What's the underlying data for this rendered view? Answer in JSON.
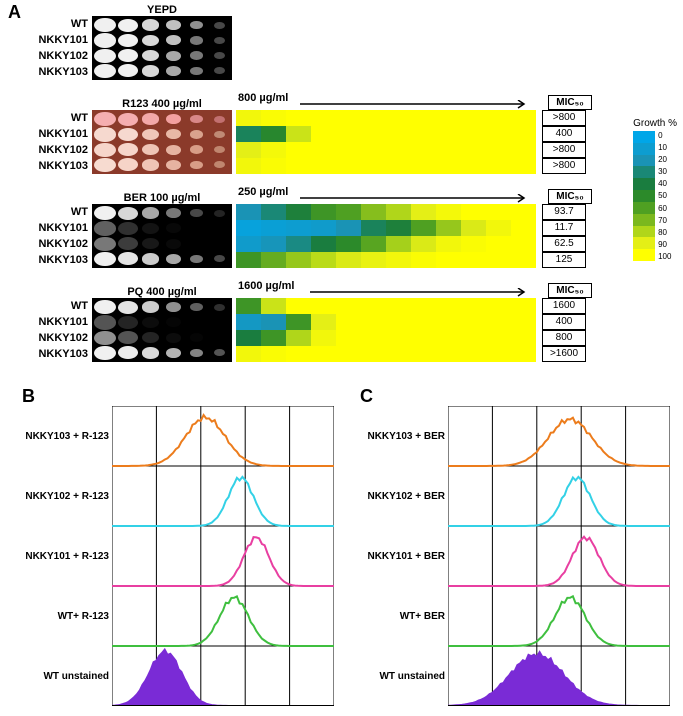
{
  "panel_labels": {
    "A": "A",
    "B": "B",
    "C": "C"
  },
  "strain_labels": [
    "WT",
    "NKKY101",
    "NKKY102",
    "NKKY103"
  ],
  "spot_assays": {
    "yepd": {
      "title": "YEPD",
      "bg": "#000000",
      "spot_opacities": [
        [
          1,
          1,
          0.9,
          0.8,
          0.6,
          0.3
        ],
        [
          1,
          1,
          0.9,
          0.8,
          0.5,
          0.3
        ],
        [
          1,
          1,
          0.9,
          0.7,
          0.5,
          0.3
        ],
        [
          1,
          1,
          0.9,
          0.7,
          0.5,
          0.3
        ]
      ]
    },
    "r123": {
      "title": "R123 400 µg/ml",
      "bg": "#8b3a2a",
      "spot_tints": [
        [
          "#f5aeb0",
          "#f5aeb0",
          "#f3a9a9",
          "#f3a0a0",
          "#d98888",
          "#c27070"
        ],
        [
          "#f6d9cf",
          "#f6d9cf",
          "#f0c7b9",
          "#e8b8a6",
          "#d9a28d",
          "#c08a75"
        ],
        [
          "#f6d5ca",
          "#f6d5ca",
          "#efc5b6",
          "#e6b3a1",
          "#d89d87",
          "#c0866f"
        ],
        [
          "#f7dbd0",
          "#f6d4c8",
          "#efc5b6",
          "#e6b3a1",
          "#d89d87",
          "#c0866f"
        ]
      ]
    },
    "ber": {
      "title": "BER 100 µg/ml",
      "bg": "#000000",
      "spot_opacities": [
        [
          1,
          0.9,
          0.7,
          0.5,
          0.3,
          0.15
        ],
        [
          0.4,
          0.2,
          0.08,
          0.03,
          0.0,
          0.0
        ],
        [
          0.5,
          0.25,
          0.1,
          0.04,
          0.0,
          0.0
        ],
        [
          1,
          0.95,
          0.85,
          0.7,
          0.5,
          0.3
        ]
      ]
    },
    "pq": {
      "title": "PQ 400 µg/ml",
      "bg": "#000000",
      "spot_opacities": [
        [
          1,
          0.95,
          0.85,
          0.6,
          0.4,
          0.2
        ],
        [
          0.35,
          0.15,
          0.05,
          0.02,
          0.0,
          0.0
        ],
        [
          0.6,
          0.35,
          0.15,
          0.05,
          0.02,
          0.0
        ],
        [
          1,
          0.98,
          0.9,
          0.75,
          0.55,
          0.35
        ]
      ]
    }
  },
  "heatmaps": {
    "r123": {
      "arrow_label": "800 µg/ml",
      "mic_header": "MIC₅₀",
      "mic_values": [
        ">800",
        "400",
        ">800",
        ">800"
      ],
      "cols": 12,
      "values": [
        [
          95,
          98,
          100,
          100,
          100,
          100,
          100,
          100,
          100,
          100,
          100,
          100
        ],
        [
          35,
          48,
          85,
          100,
          100,
          100,
          100,
          100,
          100,
          100,
          100,
          100
        ],
        [
          90,
          96,
          100,
          100,
          100,
          100,
          100,
          100,
          100,
          100,
          100,
          100
        ],
        [
          95,
          98,
          100,
          100,
          100,
          100,
          100,
          100,
          100,
          100,
          100,
          100
        ]
      ]
    },
    "ber": {
      "arrow_label": "250 µg/ml",
      "mic_header": "MIC₅₀",
      "mic_values": [
        "93.7",
        "11.7",
        "62.5",
        "125"
      ],
      "cols": 12,
      "values": [
        [
          20,
          30,
          42,
          55,
          60,
          72,
          80,
          90,
          96,
          100,
          100,
          100
        ],
        [
          5,
          8,
          10,
          12,
          20,
          35,
          42,
          60,
          75,
          88,
          95,
          100
        ],
        [
          12,
          18,
          28,
          40,
          50,
          62,
          78,
          88,
          95,
          98,
          100,
          100
        ],
        [
          55,
          65,
          75,
          82,
          88,
          92,
          95,
          98,
          100,
          100,
          100,
          100
        ]
      ]
    },
    "pq": {
      "arrow_label": "1600 µg/ml",
      "mic_header": "MIC₅₀",
      "mic_values": [
        "1600",
        "400",
        "800",
        ">1600"
      ],
      "cols": 12,
      "values": [
        [
          55,
          85,
          100,
          100,
          100,
          100,
          100,
          100,
          100,
          100,
          100,
          100
        ],
        [
          15,
          20,
          55,
          90,
          100,
          100,
          100,
          100,
          100,
          100,
          100,
          100
        ],
        [
          40,
          55,
          80,
          95,
          100,
          100,
          100,
          100,
          100,
          100,
          100,
          100
        ],
        [
          95,
          98,
          100,
          100,
          100,
          100,
          100,
          100,
          100,
          100,
          100,
          100
        ]
      ]
    }
  },
  "colorscale": {
    "title": "Growth %",
    "stops": [
      {
        "v": 0,
        "c": "#00a6e8"
      },
      {
        "v": 10,
        "c": "#0d9dd0"
      },
      {
        "v": 20,
        "c": "#1a93b5"
      },
      {
        "v": 30,
        "c": "#1a8876"
      },
      {
        "v": 40,
        "c": "#1a7d3f"
      },
      {
        "v": 50,
        "c": "#2c8a2a"
      },
      {
        "v": 60,
        "c": "#4fa022"
      },
      {
        "v": 70,
        "c": "#7bb81e"
      },
      {
        "v": 80,
        "c": "#b0d61a"
      },
      {
        "v": 90,
        "c": "#e4ef16"
      },
      {
        "v": 100,
        "c": "#ffff00"
      }
    ]
  },
  "histograms": {
    "B": {
      "labels": [
        "NKKY103 + R-123",
        "NKKY102 + R-123",
        "NKKY101 + R-123",
        "WT+ R-123",
        "WT unstained"
      ],
      "curves": [
        {
          "color": "#ec7c1c",
          "fill": false,
          "center": 0.42,
          "width": 0.22,
          "height": 0.85
        },
        {
          "color": "#33d1e6",
          "fill": false,
          "center": 0.58,
          "width": 0.14,
          "height": 0.85
        },
        {
          "color": "#e83fa1",
          "fill": false,
          "center": 0.65,
          "width": 0.14,
          "height": 0.85
        },
        {
          "color": "#3fbf3f",
          "fill": false,
          "center": 0.55,
          "width": 0.16,
          "height": 0.85
        },
        {
          "color": "#7a2bd6",
          "fill": true,
          "center": 0.24,
          "width": 0.18,
          "height": 0.95
        }
      ]
    },
    "C": {
      "labels": [
        "NKKY103 + BER",
        "NKKY102 + BER",
        "NKKY101 + BER",
        "WT+ BER",
        "WT unstained"
      ],
      "curves": [
        {
          "color": "#ec7c1c",
          "fill": false,
          "center": 0.55,
          "width": 0.24,
          "height": 0.82
        },
        {
          "color": "#33d1e6",
          "fill": false,
          "center": 0.58,
          "width": 0.15,
          "height": 0.85
        },
        {
          "color": "#e83fa1",
          "fill": false,
          "center": 0.62,
          "width": 0.15,
          "height": 0.85
        },
        {
          "color": "#3fbf3f",
          "fill": false,
          "center": 0.55,
          "width": 0.17,
          "height": 0.85
        },
        {
          "color": "#7a2bd6",
          "fill": true,
          "center": 0.4,
          "width": 0.3,
          "height": 0.9
        }
      ]
    }
  }
}
